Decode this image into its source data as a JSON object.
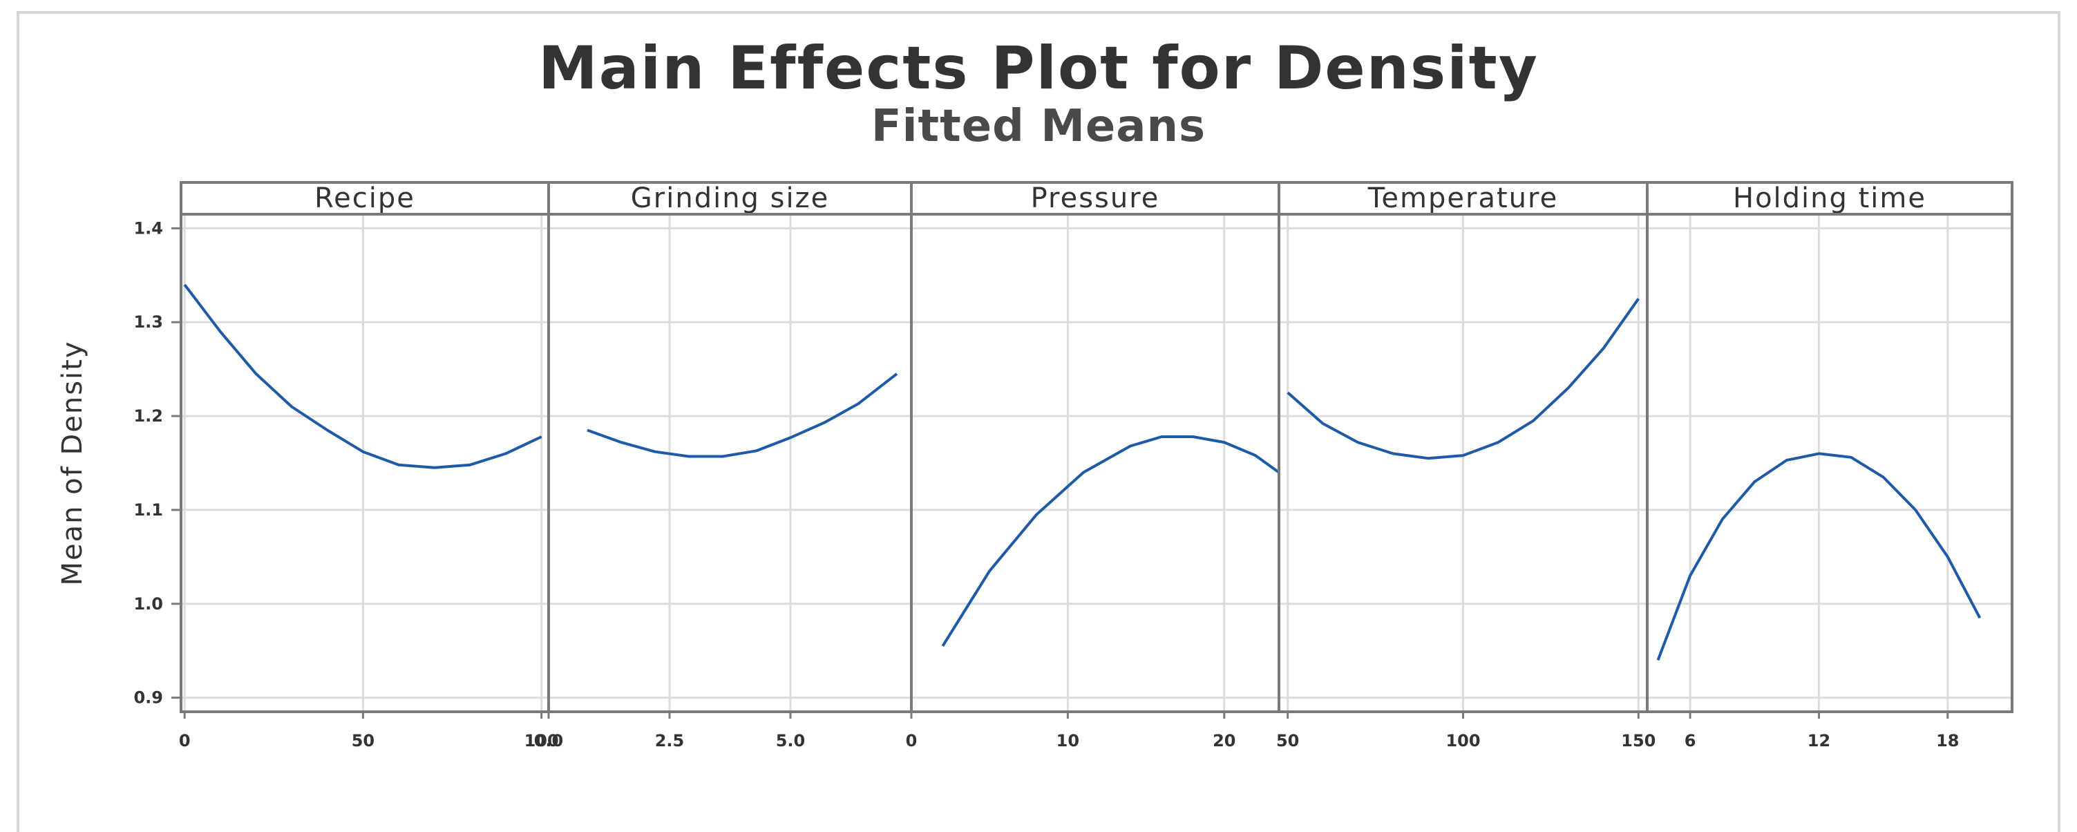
{
  "chart_data": {
    "type": "line",
    "title": "Main Effects Plot for Density",
    "subtitle": "Fitted Means",
    "ylabel": "Mean of Density",
    "ylim": [
      0.9,
      1.4
    ],
    "yticks": [
      "0.9",
      "1.0",
      "1.1",
      "1.2",
      "1.3",
      "1.4"
    ],
    "y_tick_values": [
      0.9,
      1.0,
      1.1,
      1.2,
      1.3,
      1.4
    ],
    "grid": true,
    "line_color": "#1f5aa6",
    "panels": [
      {
        "name": "Recipe",
        "xlim": [
          -1.0,
          102.0
        ],
        "x_ticks": [
          0,
          50,
          100
        ],
        "x_tick_labels": [
          "0",
          "50",
          "100"
        ],
        "x": [
          0,
          10,
          20,
          30,
          40,
          50,
          60,
          70,
          80,
          90,
          100
        ],
        "y": [
          1.34,
          1.29,
          1.245,
          1.21,
          1.185,
          1.162,
          1.148,
          1.145,
          1.148,
          1.16,
          1.178
        ]
      },
      {
        "name": "Grinding size",
        "xlim": [
          0.0,
          7.5
        ],
        "x_ticks": [
          0.0,
          2.5,
          5.0
        ],
        "x_tick_labels": [
          "0.0",
          "2.5",
          "5.0"
        ],
        "x": [
          0.8,
          1.5,
          2.2,
          2.9,
          3.6,
          4.3,
          5.0,
          5.7,
          6.4,
          7.2
        ],
        "y": [
          1.185,
          1.172,
          1.162,
          1.157,
          1.157,
          1.163,
          1.177,
          1.193,
          1.213,
          1.245
        ]
      },
      {
        "name": "Pressure",
        "xlim": [
          0.0,
          23.5
        ],
        "x_ticks": [
          0,
          10,
          20
        ],
        "x_tick_labels": [
          "0",
          "10",
          "20"
        ],
        "x": [
          2,
          5,
          8,
          11,
          14,
          16,
          18,
          20,
          22,
          23.5
        ],
        "y": [
          0.955,
          1.035,
          1.095,
          1.14,
          1.168,
          1.178,
          1.178,
          1.172,
          1.158,
          1.14
        ]
      },
      {
        "name": "Temperature",
        "xlim": [
          47.5,
          152.5
        ],
        "x_ticks": [
          50,
          100,
          150
        ],
        "x_tick_labels": [
          "50",
          "100",
          "150"
        ],
        "x": [
          50,
          60,
          70,
          80,
          90,
          100,
          110,
          120,
          130,
          140,
          150
        ],
        "y": [
          1.225,
          1.192,
          1.172,
          1.16,
          1.155,
          1.158,
          1.172,
          1.195,
          1.23,
          1.272,
          1.325
        ]
      },
      {
        "name": "Holding time",
        "xlim": [
          4.0,
          21.0
        ],
        "x_ticks": [
          6,
          12,
          18
        ],
        "x_tick_labels": [
          "6",
          "12",
          "18"
        ],
        "x": [
          4.5,
          6,
          7.5,
          9,
          10.5,
          12,
          13.5,
          15,
          16.5,
          18,
          19.5
        ],
        "y": [
          0.94,
          1.03,
          1.09,
          1.13,
          1.153,
          1.16,
          1.156,
          1.135,
          1.1,
          1.05,
          0.985
        ]
      }
    ]
  }
}
